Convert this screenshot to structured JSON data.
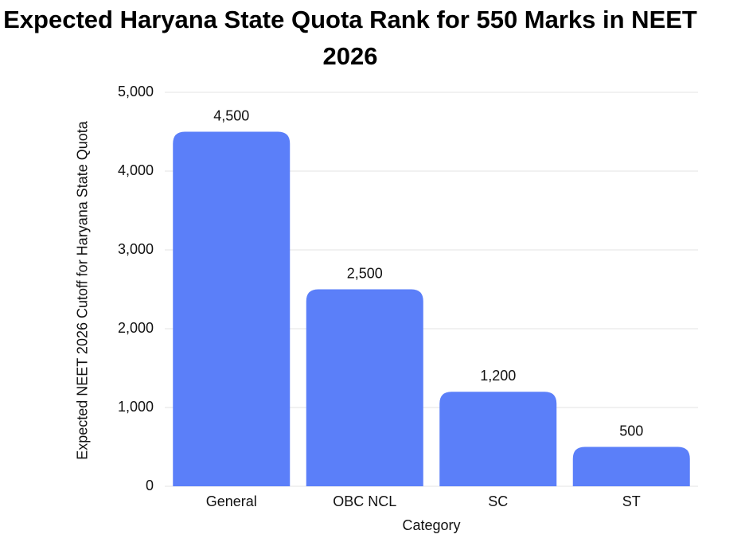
{
  "chart_data": {
    "type": "bar",
    "title": "Expected Haryana State Quota Rank for 550 Marks in NEET 2026",
    "x_label": "Category",
    "y_label": "Expected NEET 2026 Cutoff for Haryana State Quota",
    "categories": [
      "General",
      "OBC NCL",
      "SC",
      "ST"
    ],
    "values": [
      4500,
      2500,
      1200,
      500
    ],
    "value_labels": [
      "4,500",
      "2,500",
      "1,200",
      "500"
    ],
    "color": "#5b7ff9",
    "ylim": [
      0,
      5000
    ],
    "yticks": [
      0,
      {
        "value": 1000,
        "label": "1,000"
      },
      {
        "value": 2000,
        "label": "2,000"
      },
      {
        "value": 3000,
        "label": "3,000"
      },
      {
        "value": 4000,
        "label": "4,000"
      },
      {
        "value": 5000,
        "label": "5,000"
      }
    ],
    "grid": true
  }
}
